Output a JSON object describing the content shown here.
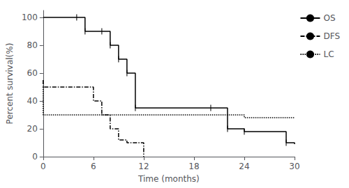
{
  "chart_data": {
    "type": "line",
    "xlabel": "Time (months)",
    "ylabel": "Percent survival(%)",
    "xlim": [
      0,
      30
    ],
    "ylim": [
      0,
      105
    ],
    "xticks": [
      0,
      6,
      12,
      18,
      24,
      30
    ],
    "yticks": [
      0,
      20,
      40,
      60,
      80,
      100
    ],
    "grid": false,
    "legend": "right",
    "series": [
      {
        "name": "OS",
        "color": "#000000",
        "line_style": "solid",
        "x": [
          0,
          4,
          5,
          7,
          8,
          9,
          10,
          11,
          20,
          22,
          24,
          29,
          30
        ],
        "values": [
          100,
          100,
          90,
          90,
          80,
          70,
          60,
          35,
          35,
          20,
          18,
          10,
          9
        ],
        "censor_x": [
          4,
          5,
          7,
          8,
          9,
          10,
          11,
          20,
          22,
          24,
          29
        ],
        "censor_y": [
          100,
          90,
          90,
          80,
          70,
          60,
          35,
          35,
          20,
          18,
          10
        ]
      },
      {
        "name": "DFS",
        "color": "#000000",
        "line_style": "dashdot",
        "x": [
          0,
          0,
          5,
          6,
          7,
          8,
          9,
          10,
          11,
          12
        ],
        "values": [
          55,
          50,
          50,
          40,
          30,
          20,
          12,
          10,
          10,
          0
        ]
      },
      {
        "name": "LC",
        "color": "#000000",
        "line_style": "dotted",
        "x": [
          0,
          0,
          24,
          24,
          30
        ],
        "values": [
          50,
          30,
          30,
          28,
          28
        ]
      }
    ]
  }
}
